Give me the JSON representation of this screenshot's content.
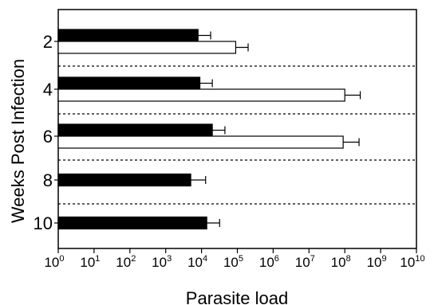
{
  "chart_data": {
    "type": "bar",
    "orientation": "horizontal",
    "x_scale": "log",
    "xlim": [
      1,
      10000000000
    ],
    "x_ticks": [
      {
        "base": "10",
        "exp": "0"
      },
      {
        "base": "10",
        "exp": "1"
      },
      {
        "base": "10",
        "exp": "2"
      },
      {
        "base": "10",
        "exp": "3"
      },
      {
        "base": "10",
        "exp": "4"
      },
      {
        "base": "10",
        "exp": "5"
      },
      {
        "base": "10",
        "exp": "6"
      },
      {
        "base": "10",
        "exp": "7"
      },
      {
        "base": "10",
        "exp": "8"
      },
      {
        "base": "10",
        "exp": "9"
      },
      {
        "base": "10",
        "exp": "10"
      }
    ],
    "xlabel": "Parasite load",
    "ylabel": "Weeks Post Infection",
    "categories": [
      "2",
      "4",
      "6",
      "8",
      "10"
    ],
    "series": [
      {
        "color": "#000000",
        "values": [
          8000,
          9000,
          20000,
          5000,
          14000
        ],
        "errors_upper": [
          18000,
          20000,
          45000,
          13000,
          32000
        ]
      },
      {
        "color": "#ffffff",
        "values": [
          90000,
          100000000,
          90000000,
          null,
          null
        ],
        "errors_upper": [
          200000,
          270000000,
          250000000,
          null,
          null
        ]
      }
    ],
    "group_separators": "dotted",
    "grid": false
  }
}
